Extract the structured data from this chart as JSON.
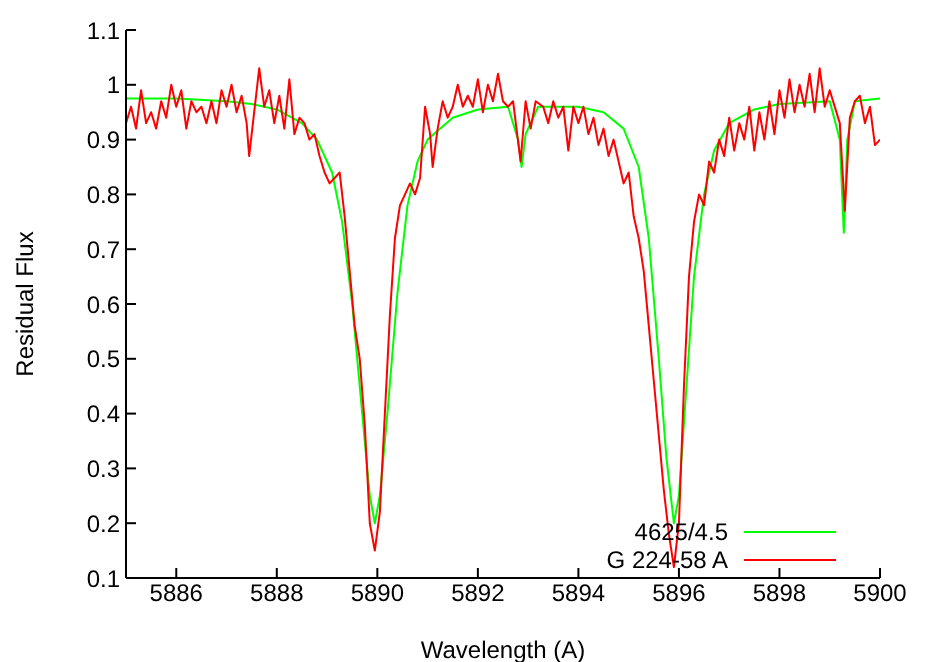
{
  "chart_data": {
    "type": "line",
    "xlabel": "Wavelength (A)",
    "ylabel": "Residual Flux",
    "xlim": [
      5885,
      5900
    ],
    "xticks": [
      5886,
      5888,
      5890,
      5892,
      5894,
      5896,
      5898,
      5900
    ],
    "ylim": [
      0.1,
      1.1
    ],
    "yticks": [
      0.1,
      0.2,
      0.3,
      0.4,
      0.5,
      0.6,
      0.7,
      0.8,
      0.9,
      1,
      1.1
    ],
    "grid": false,
    "legend": "bottom right",
    "marker": "none",
    "line_style": "solid",
    "series": [
      {
        "name": "4625/4.5",
        "color": "#00ff00",
        "x": [
          5885,
          5886,
          5887,
          5887.5,
          5888,
          5888.5,
          5888.8,
          5889.1,
          5889.3,
          5889.5,
          5889.7,
          5889.85,
          5889.95,
          5890.05,
          5890.2,
          5890.4,
          5890.6,
          5890.8,
          5891,
          5891.5,
          5892,
          5892.6,
          5892.8,
          5892.87,
          5892.95,
          5893.2,
          5894,
          5894.5,
          5894.9,
          5895.2,
          5895.4,
          5895.6,
          5895.75,
          5895.9,
          5896,
          5896.15,
          5896.3,
          5896.5,
          5896.7,
          5897,
          5897.5,
          5898,
          5899,
          5899.2,
          5899.28,
          5899.35,
          5899.5,
          5900
        ],
        "values": [
          0.975,
          0.975,
          0.97,
          0.965,
          0.955,
          0.93,
          0.9,
          0.84,
          0.75,
          0.6,
          0.4,
          0.25,
          0.2,
          0.25,
          0.4,
          0.62,
          0.78,
          0.86,
          0.9,
          0.94,
          0.955,
          0.96,
          0.9,
          0.85,
          0.91,
          0.96,
          0.96,
          0.95,
          0.92,
          0.85,
          0.72,
          0.5,
          0.32,
          0.2,
          0.25,
          0.45,
          0.65,
          0.8,
          0.88,
          0.93,
          0.955,
          0.965,
          0.97,
          0.9,
          0.73,
          0.9,
          0.97,
          0.975
        ]
      },
      {
        "name": "G 224-58 A",
        "color": "#ff0000",
        "x": [
          5885,
          5885.1,
          5885.2,
          5885.3,
          5885.4,
          5885.5,
          5885.6,
          5885.7,
          5885.8,
          5885.9,
          5886,
          5886.1,
          5886.2,
          5886.3,
          5886.4,
          5886.5,
          5886.6,
          5886.7,
          5886.8,
          5886.9,
          5887,
          5887.1,
          5887.2,
          5887.3,
          5887.4,
          5887.45,
          5887.55,
          5887.65,
          5887.75,
          5887.85,
          5887.95,
          5888.05,
          5888.15,
          5888.25,
          5888.35,
          5888.45,
          5888.55,
          5888.65,
          5888.75,
          5888.85,
          5888.95,
          5889.05,
          5889.15,
          5889.25,
          5889.35,
          5889.45,
          5889.55,
          5889.65,
          5889.75,
          5889.85,
          5889.95,
          5890.05,
          5890.15,
          5890.25,
          5890.35,
          5890.45,
          5890.55,
          5890.65,
          5890.75,
          5890.85,
          5890.95,
          5891.05,
          5891.1,
          5891.2,
          5891.3,
          5891.4,
          5891.5,
          5891.6,
          5891.7,
          5891.8,
          5891.9,
          5892,
          5892.1,
          5892.2,
          5892.3,
          5892.4,
          5892.5,
          5892.6,
          5892.7,
          5892.85,
          5892.95,
          5893.05,
          5893.15,
          5893.3,
          5893.4,
          5893.5,
          5893.6,
          5893.7,
          5893.8,
          5893.9,
          5894,
          5894.1,
          5894.2,
          5894.3,
          5894.4,
          5894.5,
          5894.6,
          5894.7,
          5894.8,
          5894.9,
          5895,
          5895.1,
          5895.2,
          5895.3,
          5895.4,
          5895.5,
          5895.6,
          5895.7,
          5895.8,
          5895.9,
          5896,
          5896.1,
          5896.2,
          5896.3,
          5896.4,
          5896.5,
          5896.6,
          5896.7,
          5896.8,
          5896.9,
          5897,
          5897.1,
          5897.2,
          5897.3,
          5897.4,
          5897.5,
          5897.6,
          5897.7,
          5897.8,
          5897.9,
          5898,
          5898.1,
          5898.2,
          5898.3,
          5898.4,
          5898.5,
          5898.6,
          5898.7,
          5898.8,
          5898.9,
          5899,
          5899.1,
          5899.2,
          5899.3,
          5899.4,
          5899.5,
          5899.6,
          5899.7,
          5899.8,
          5899.9,
          5900
        ],
        "values": [
          0.93,
          0.96,
          0.92,
          0.99,
          0.93,
          0.95,
          0.92,
          0.97,
          0.94,
          1.0,
          0.96,
          0.99,
          0.92,
          0.97,
          0.95,
          0.96,
          0.93,
          0.97,
          0.93,
          0.99,
          0.96,
          1.0,
          0.95,
          0.98,
          0.93,
          0.87,
          0.95,
          1.03,
          0.96,
          0.99,
          0.93,
          0.98,
          0.92,
          1.01,
          0.91,
          0.94,
          0.93,
          0.9,
          0.91,
          0.87,
          0.84,
          0.82,
          0.83,
          0.84,
          0.76,
          0.66,
          0.56,
          0.5,
          0.38,
          0.2,
          0.15,
          0.22,
          0.4,
          0.58,
          0.72,
          0.78,
          0.8,
          0.82,
          0.8,
          0.83,
          0.96,
          0.91,
          0.85,
          0.92,
          0.97,
          0.94,
          0.96,
          1.0,
          0.96,
          0.98,
          0.96,
          1.01,
          0.95,
          1.0,
          0.97,
          1.02,
          0.97,
          0.96,
          0.97,
          0.86,
          0.97,
          0.92,
          0.97,
          0.96,
          0.93,
          0.97,
          0.94,
          0.96,
          0.88,
          0.96,
          0.93,
          0.96,
          0.91,
          0.94,
          0.89,
          0.92,
          0.87,
          0.9,
          0.86,
          0.82,
          0.84,
          0.76,
          0.72,
          0.66,
          0.56,
          0.46,
          0.36,
          0.26,
          0.18,
          0.12,
          0.2,
          0.45,
          0.65,
          0.75,
          0.8,
          0.78,
          0.86,
          0.84,
          0.9,
          0.87,
          0.94,
          0.88,
          0.93,
          0.9,
          0.96,
          0.88,
          0.95,
          0.9,
          0.97,
          0.91,
          0.99,
          0.94,
          1.01,
          0.95,
          1.0,
          0.96,
          1.02,
          0.95,
          1.03,
          0.96,
          0.99,
          0.96,
          0.93,
          0.77,
          0.94,
          0.97,
          0.98,
          0.93,
          0.96,
          0.89,
          0.9
        ]
      }
    ]
  }
}
